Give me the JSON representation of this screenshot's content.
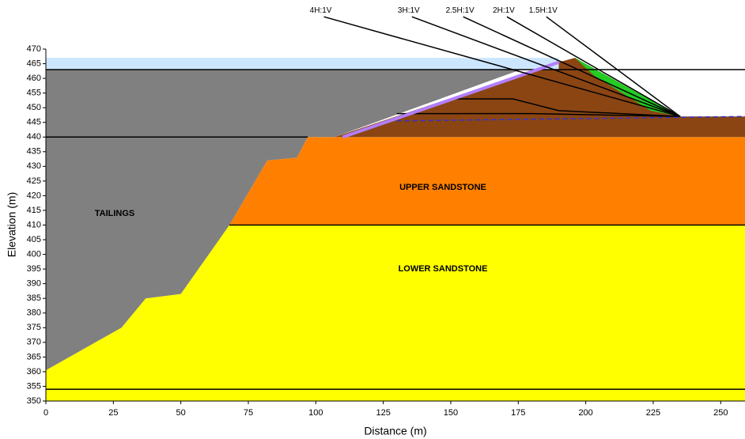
{
  "chart_data": {
    "type": "cross-section",
    "x_label": "Distance (m)",
    "y_label": "Elevation (m)",
    "xlim": [
      0,
      259
    ],
    "ylim": [
      350,
      470
    ],
    "xticks": [
      0,
      25,
      50,
      75,
      100,
      125,
      150,
      175,
      200,
      225,
      250
    ],
    "yticks": [
      350,
      355,
      360,
      365,
      370,
      375,
      380,
      385,
      390,
      395,
      400,
      405,
      410,
      415,
      420,
      425,
      430,
      435,
      440,
      445,
      450,
      455,
      460,
      465,
      470
    ],
    "regions": [
      {
        "name": "LOWER SANDSTONE",
        "color": "#ffff00",
        "x": [
          0,
          0,
          28,
          37,
          50,
          68,
          259,
          259
        ],
        "y": [
          350,
          360.5,
          375,
          385,
          386.5,
          410,
          410,
          350
        ]
      },
      {
        "name": "UPPER SANDSTONE",
        "color": "#ff8000",
        "x": [
          68,
          82,
          93,
          97,
          259,
          259
        ],
        "y": [
          410,
          432,
          433,
          440,
          440,
          410
        ]
      },
      {
        "name": "TAILINGS",
        "color": "#808080",
        "x": [
          0,
          28,
          37,
          50,
          68,
          82,
          93,
          97,
          107,
          176,
          0
        ],
        "y": [
          360.5,
          375,
          385,
          386.5,
          410,
          432,
          433,
          440,
          440,
          463,
          463
        ]
      },
      {
        "color": "#8b4513",
        "x": [
          107,
          188,
          196,
          235,
          259,
          259
        ],
        "y": [
          440,
          465,
          467,
          447,
          447,
          440
        ]
      },
      {
        "color": "#22cc22",
        "x": [
          196,
          235,
          224,
          203
        ],
        "y": [
          467,
          447,
          449,
          461
        ]
      },
      {
        "color": "#cce6ff",
        "x": [
          0,
          190,
          190,
          0
        ],
        "y": [
          463,
          463,
          467,
          467
        ]
      }
    ],
    "lines": [
      {
        "color": "#000000",
        "x": [
          0,
          97
        ],
        "y": [
          440,
          440
        ]
      },
      {
        "color": "#000000",
        "x": [
          0,
          259
        ],
        "y": [
          463,
          463
        ]
      },
      {
        "color": "#000000",
        "x": [
          68,
          259
        ],
        "y": [
          410,
          410
        ]
      },
      {
        "color": "#000000",
        "x": [
          0,
          259
        ],
        "y": [
          354,
          354
        ]
      },
      {
        "color": "#000000",
        "x": [
          150,
          173,
          190,
          235
        ],
        "y": [
          453,
          453,
          449,
          447
        ]
      },
      {
        "color": "#000000",
        "x": [
          130,
          180,
          235
        ],
        "y": [
          448,
          448,
          447
        ]
      },
      {
        "color": "#3333cc",
        "dash": true,
        "x": [
          130,
          259
        ],
        "y": [
          445.5,
          447
        ]
      },
      {
        "color": "#b27fff",
        "width": 4,
        "x": [
          110,
          190
        ],
        "y": [
          440,
          465.5
        ]
      }
    ],
    "slopes": [
      {
        "name": "4H:1V",
        "color": "#000000",
        "x": [
          103,
          235
        ],
        "y": [
          481,
          447
        ]
      },
      {
        "name": "3H:1V",
        "color": "#000000",
        "x": [
          135.6,
          235
        ],
        "y": [
          481,
          447
        ]
      },
      {
        "name": "2.5H:1V",
        "color": "#000000",
        "x": [
          154.6,
          235
        ],
        "y": [
          481,
          447
        ]
      },
      {
        "name": "2H:1V",
        "color": "#000000",
        "x": [
          170.8,
          235
        ],
        "y": [
          481,
          447
        ]
      },
      {
        "name": "1.5H:1V",
        "color": "#000000",
        "x": [
          185.4,
          235
        ],
        "y": [
          481,
          447
        ]
      }
    ]
  }
}
